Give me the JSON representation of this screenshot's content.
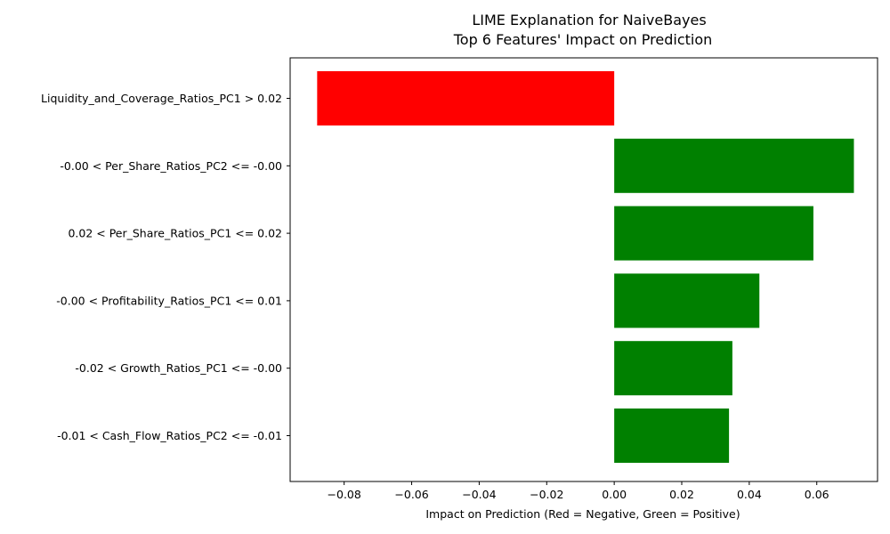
{
  "chart_data": {
    "type": "bar",
    "orientation": "horizontal",
    "title": "LIME Explanation for NaiveBayes",
    "subtitle": "Top 6 Features' Impact on Prediction",
    "xlabel": "Impact on Prediction (Red = Negative, Green = Positive)",
    "ylabel": "",
    "xlim": [
      -0.096,
      0.078
    ],
    "xticks": [
      -0.08,
      -0.06,
      -0.04,
      -0.02,
      0.0,
      0.02,
      0.04,
      0.06
    ],
    "xtick_labels": [
      "−0.08",
      "−0.06",
      "−0.04",
      "−0.02",
      "0.00",
      "0.02",
      "0.04",
      "0.06"
    ],
    "grid": false,
    "legend": false,
    "categories": [
      "Liquidity_and_Coverage_Ratios_PC1 > 0.02",
      "-0.00 < Per_Share_Ratios_PC2 <= -0.00",
      "0.02 < Per_Share_Ratios_PC1 <= 0.02",
      "-0.00 < Profitability_Ratios_PC1 <= 0.01",
      "-0.02 < Growth_Ratios_PC1 <= -0.00",
      "-0.01 < Cash_Flow_Ratios_PC2 <= -0.01"
    ],
    "values": [
      -0.088,
      0.071,
      0.059,
      0.043,
      0.035,
      0.034
    ],
    "colors": {
      "negative": "#ff0000",
      "positive": "#008000"
    }
  }
}
